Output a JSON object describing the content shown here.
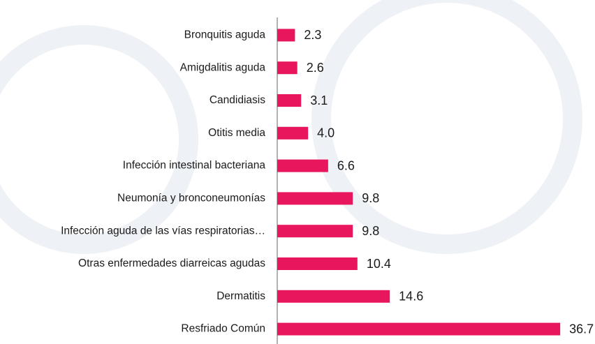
{
  "chart_data": {
    "type": "barh",
    "categories": [
      "Bronquitis aguda",
      "Amigdalitis aguda",
      "Candidiasis",
      "Otitis media",
      "Infección intestinal bacteriana",
      "Neumonía y bronconeumonías",
      "Infección aguda de las vías respiratorias…",
      "Otras enfermedades diarreicas agudas",
      "Dermatitis",
      "Resfriado Común"
    ],
    "values": [
      2.3,
      2.6,
      3.1,
      4.0,
      6.6,
      9.8,
      9.8,
      10.4,
      14.6,
      36.7
    ],
    "value_labels": [
      "2.3",
      "2.6",
      "3.1",
      "4.0",
      "6.6",
      "9.8",
      "9.8",
      "10.4",
      "14.6",
      "36.7"
    ],
    "color": "#e8175d",
    "xlim": [
      0,
      40
    ]
  }
}
